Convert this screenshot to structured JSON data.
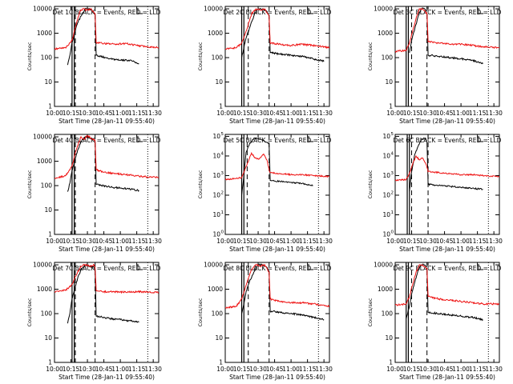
{
  "colors": {
    "events": "#000000",
    "lld": "#ee1111",
    "axis": "#000000",
    "background": "#ffffff"
  },
  "chart_data": {
    "type": "line",
    "layout": "3x3 grid of log-scale time series panels",
    "x_ticks": [
      "10:00",
      "10:15",
      "10:30",
      "10:45",
      "11:00",
      "11:15",
      "11:30"
    ],
    "x_range_minutes": [
      0,
      95
    ],
    "xlabel": "Start Time (28-Jan-11 09:55:40)",
    "ylabel": "Counts/sec",
    "grid": false,
    "ytick_sets": {
      "decimal": [
        {
          "label": "1",
          "log": 0
        },
        {
          "label": "10",
          "log": 1
        },
        {
          "label": "100",
          "log": 2
        },
        {
          "label": "1000",
          "log": 3
        },
        {
          "label": "10000",
          "log": 4
        }
      ],
      "exponent": [
        {
          "base": "10",
          "exp": "0",
          "log": 0
        },
        {
          "base": "10",
          "exp": "1",
          "log": 1
        },
        {
          "base": "10",
          "exp": "2",
          "log": 2
        },
        {
          "base": "10",
          "exp": "3",
          "log": 3
        },
        {
          "base": "10",
          "exp": "4",
          "log": 4
        },
        {
          "base": "10",
          "exp": "5",
          "log": 5
        }
      ]
    },
    "panels": [
      {
        "title": "Det 1C BLACK = Events, RED = LLD",
        "ylim_log": [
          0,
          4.1
        ],
        "ytick_set": "decimal",
        "eclipse_min": [
          16,
          18
        ],
        "vlines_min": [
          19,
          37
        ],
        "dotted_min": [
          85
        ],
        "series": [
          {
            "name": "Events",
            "color": "events",
            "x": [
              12,
              14,
              16,
              20,
              24,
              28,
              31,
              34,
              37,
              38,
              50,
              60,
              70,
              77
            ],
            "y_log": [
              1.7,
              2.1,
              2.6,
              3.3,
              3.7,
              4.0,
              4.0,
              3.95,
              3.8,
              2.1,
              1.95,
              1.9,
              1.88,
              1.75
            ]
          },
          {
            "name": "LLD",
            "color": "lld",
            "x": [
              0,
              10,
              16,
              20,
              23,
              26,
              29,
              33,
              37,
              38,
              45,
              55,
              65,
              75,
              85,
              95
            ],
            "y_log": [
              2.35,
              2.4,
              2.7,
              3.4,
              3.9,
              4.0,
              3.95,
              4.0,
              3.8,
              2.62,
              2.58,
              2.55,
              2.58,
              2.5,
              2.45,
              2.42
            ]
          }
        ]
      },
      {
        "title": "Det 2C BLACK = Events, RED = LLD",
        "ylim_log": [
          0,
          4.1
        ],
        "ytick_set": "decimal",
        "eclipse_min": [
          15,
          17
        ],
        "vlines_min": [
          21,
          40
        ],
        "dotted_min": [
          85
        ],
        "series": [
          {
            "name": "Events",
            "color": "events",
            "x": [
              15,
              17,
              19,
              22,
              26,
              30,
              34,
              38,
              40,
              41,
              50,
              60,
              70,
              80,
              90
            ],
            "y_log": [
              2.0,
              2.4,
              2.8,
              3.2,
              3.7,
              4.0,
              4.0,
              3.9,
              3.7,
              2.2,
              2.15,
              2.1,
              2.05,
              1.95,
              1.85
            ]
          },
          {
            "name": "LLD",
            "color": "lld",
            "x": [
              0,
              10,
              15,
              20,
              24,
              28,
              32,
              36,
              40,
              41,
              50,
              60,
              70,
              80,
              90,
              95
            ],
            "y_log": [
              2.35,
              2.4,
              2.6,
              3.2,
              3.8,
              4.0,
              3.95,
              4.0,
              3.7,
              2.6,
              2.55,
              2.5,
              2.55,
              2.5,
              2.45,
              2.4
            ]
          }
        ]
      },
      {
        "title": "Det 3C BLACK = Events, RED = LLD",
        "ylim_log": [
          0,
          4.1
        ],
        "ytick_set": "decimal",
        "eclipse_min": [
          10,
          12
        ],
        "vlines_min": [
          15,
          29
        ],
        "dotted_min": [
          85
        ],
        "series": [
          {
            "name": "Events",
            "color": "events",
            "x": [
              13,
              15,
              18,
              21,
              24,
              27,
              29,
              30,
              40,
              50,
              60,
              70,
              80
            ],
            "y_log": [
              2.2,
              2.7,
              3.2,
              3.7,
              4.0,
              4.0,
              3.8,
              2.1,
              2.05,
              2.0,
              1.95,
              1.9,
              1.75
            ]
          },
          {
            "name": "LLD",
            "color": "lld",
            "x": [
              0,
              10,
              13,
              16,
              19,
              22,
              25,
              29,
              30,
              40,
              50,
              60,
              70,
              80,
              95
            ],
            "y_log": [
              2.25,
              2.3,
              2.6,
              3.1,
              3.6,
              4.0,
              4.0,
              3.8,
              2.65,
              2.6,
              2.55,
              2.55,
              2.5,
              2.45,
              2.4
            ]
          }
        ]
      },
      {
        "title": "Det 4C BLACK = Events, RED = LLD",
        "ylim_log": [
          0,
          4.1
        ],
        "ytick_set": "decimal",
        "eclipse_min": [
          16,
          18
        ],
        "vlines_min": [
          19,
          37
        ],
        "dotted_min": [
          85
        ],
        "series": [
          {
            "name": "Events",
            "color": "events",
            "x": [
              12,
              14,
              16,
              20,
              24,
              28,
              32,
              36,
              37,
              38,
              50,
              60,
              70,
              77
            ],
            "y_log": [
              1.75,
              2.1,
              2.6,
              3.3,
              3.8,
              4.0,
              3.95,
              3.9,
              3.8,
              2.05,
              1.95,
              1.9,
              1.85,
              1.8
            ]
          },
          {
            "name": "LLD",
            "color": "lld",
            "x": [
              0,
              10,
              16,
              20,
              24,
              27,
              30,
              33,
              37,
              38,
              45,
              55,
              65,
              75,
              85,
              95
            ],
            "y_log": [
              2.3,
              2.4,
              2.8,
              3.5,
              4.0,
              3.9,
              4.05,
              3.95,
              3.85,
              2.65,
              2.55,
              2.5,
              2.45,
              2.4,
              2.35,
              2.35
            ]
          }
        ]
      },
      {
        "title": "Det 5C BLACK = Events, RED = LLD",
        "ylim_log": [
          0,
          5.1
        ],
        "ytick_set": "exponent",
        "eclipse_min": [
          15,
          17
        ],
        "vlines_min": [
          20,
          40
        ],
        "dotted_min": [
          85
        ],
        "series": [
          {
            "name": "Events",
            "color": "events",
            "x": [
              15,
              17,
              19,
              22,
              26,
              30,
              34,
              38,
              40,
              41,
              50,
              60,
              70,
              80
            ],
            "y_log": [
              2.0,
              3.0,
              4.2,
              4.6,
              4.9,
              4.9,
              4.8,
              4.7,
              4.6,
              2.75,
              2.7,
              2.65,
              2.6,
              2.5
            ]
          },
          {
            "name": "LLD",
            "color": "lld",
            "x": [
              0,
              10,
              15,
              20,
              24,
              27,
              31,
              35,
              38,
              40,
              41,
              50,
              60,
              70,
              80,
              95
            ],
            "y_log": [
              2.8,
              2.85,
              2.9,
              3.6,
              4.15,
              3.9,
              3.85,
              4.1,
              3.8,
              3.3,
              3.15,
              3.1,
              3.05,
              3.05,
              3.0,
              2.95
            ]
          }
        ]
      },
      {
        "title": "Det 6C BLACK = Events, RED = LLD",
        "ylim_log": [
          0,
          5.1
        ],
        "ytick_set": "exponent",
        "eclipse_min": [
          11,
          13
        ],
        "vlines_min": [
          15,
          30
        ],
        "dotted_min": [
          85
        ],
        "series": [
          {
            "name": "Events",
            "color": "events",
            "x": [
              13,
              15,
              18,
              21,
              24,
              27,
              29,
              30,
              40,
              50,
              60,
              70,
              80
            ],
            "y_log": [
              2.2,
              3.2,
              4.1,
              4.5,
              4.85,
              4.9,
              4.7,
              2.55,
              2.5,
              2.45,
              2.4,
              2.35,
              2.3
            ]
          },
          {
            "name": "LLD",
            "color": "lld",
            "x": [
              0,
              10,
              13,
              16,
              19,
              22,
              25,
              28,
              30,
              40,
              50,
              60,
              70,
              80,
              95
            ],
            "y_log": [
              2.75,
              2.8,
              3.1,
              3.6,
              4.0,
              3.8,
              3.9,
              3.6,
              3.2,
              3.15,
              3.1,
              3.05,
              3.05,
              3.0,
              2.95
            ]
          }
        ]
      },
      {
        "title": "Det 7C BLACK = Events, RED = LLD",
        "ylim_log": [
          0,
          4.1
        ],
        "ytick_set": "decimal",
        "eclipse_min": [
          16,
          18
        ],
        "vlines_min": [
          19,
          37
        ],
        "dotted_min": [
          85
        ],
        "series": [
          {
            "name": "Events",
            "color": "events",
            "x": [
              12,
              14,
              16,
              20,
              24,
              28,
              32,
              36,
              37,
              38,
              50,
              60,
              70,
              77
            ],
            "y_log": [
              1.6,
              2.0,
              2.6,
              3.3,
              3.8,
              4.0,
              3.95,
              3.9,
              3.8,
              1.9,
              1.8,
              1.75,
              1.7,
              1.65
            ]
          },
          {
            "name": "LLD",
            "color": "lld",
            "x": [
              0,
              10,
              16,
              20,
              24,
              28,
              32,
              36,
              37,
              38,
              45,
              55,
              65,
              75,
              85,
              95
            ],
            "y_log": [
              2.9,
              2.95,
              3.2,
              3.6,
              3.95,
              4.0,
              3.95,
              4.0,
              3.9,
              2.95,
              2.9,
              2.9,
              2.88,
              2.9,
              2.88,
              2.87
            ]
          }
        ]
      },
      {
        "title": "Det 8C BLACK = Events, RED = LLD",
        "ylim_log": [
          0,
          4.1
        ],
        "ytick_set": "decimal",
        "eclipse_min": [
          15,
          17
        ],
        "vlines_min": [
          21,
          40
        ],
        "dotted_min": [
          85
        ],
        "series": [
          {
            "name": "Events",
            "color": "events",
            "x": [
              15,
              17,
              19,
              22,
              26,
              30,
              34,
              38,
              40,
              41,
              50,
              60,
              70,
              80,
              90
            ],
            "y_log": [
              2.0,
              2.4,
              2.9,
              3.3,
              3.7,
              4.0,
              4.0,
              3.9,
              3.7,
              2.1,
              2.05,
              2.0,
              1.95,
              1.85,
              1.75
            ]
          },
          {
            "name": "LLD",
            "color": "lld",
            "x": [
              0,
              10,
              15,
              20,
              24,
              28,
              32,
              36,
              40,
              41,
              50,
              60,
              70,
              80,
              90,
              95
            ],
            "y_log": [
              2.25,
              2.3,
              2.6,
              3.3,
              3.8,
              4.0,
              3.95,
              4.0,
              3.7,
              2.6,
              2.5,
              2.45,
              2.45,
              2.4,
              2.35,
              2.3
            ]
          }
        ]
      },
      {
        "title": "Det 9C BLACK = Events, RED = LLD",
        "ylim_log": [
          0,
          4.1
        ],
        "ytick_set": "decimal",
        "eclipse_min": [
          10,
          12
        ],
        "vlines_min": [
          15,
          29
        ],
        "dotted_min": [
          85
        ],
        "series": [
          {
            "name": "Events",
            "color": "events",
            "x": [
              10,
              13,
              15,
              18,
              21,
              24,
              27,
              29,
              30,
              40,
              50,
              60,
              70,
              80
            ],
            "y_log": [
              1.8,
              2.3,
              2.8,
              3.3,
              3.8,
              4.0,
              4.0,
              3.8,
              2.05,
              2.0,
              1.95,
              1.9,
              1.85,
              1.75
            ]
          },
          {
            "name": "LLD",
            "color": "lld",
            "x": [
              0,
              10,
              13,
              16,
              19,
              22,
              25,
              29,
              30,
              40,
              50,
              60,
              70,
              80,
              95
            ],
            "y_log": [
              2.35,
              2.4,
              2.7,
              3.2,
              3.7,
              4.0,
              4.0,
              3.85,
              2.7,
              2.6,
              2.55,
              2.5,
              2.45,
              2.4,
              2.4
            ]
          }
        ]
      }
    ]
  }
}
